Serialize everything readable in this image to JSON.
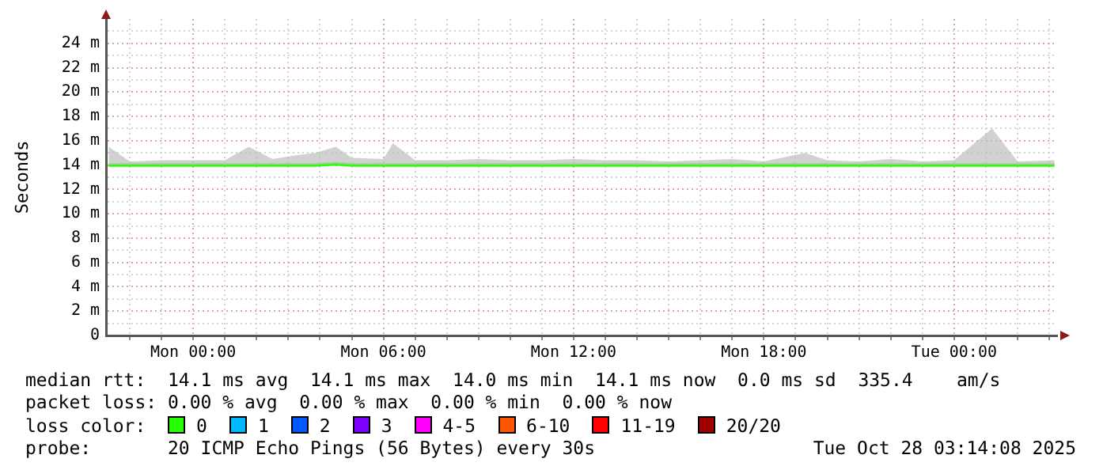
{
  "chart_data": {
    "type": "line",
    "ylabel": "Seconds",
    "xlim": [
      "2025-10-26T21:15",
      "2025-10-28T03:15"
    ],
    "xticks": [
      {
        "value": "2025-10-26T22:00",
        "label": null
      },
      {
        "value": "2025-10-26T23:00",
        "label": null
      },
      {
        "value": "2025-10-27T00:00",
        "label": "Mon 00:00"
      },
      {
        "value": "2025-10-27T01:00",
        "label": null
      },
      {
        "value": "2025-10-27T02:00",
        "label": null
      },
      {
        "value": "2025-10-27T03:00",
        "label": null
      },
      {
        "value": "2025-10-27T04:00",
        "label": null
      },
      {
        "value": "2025-10-27T05:00",
        "label": null
      },
      {
        "value": "2025-10-27T06:00",
        "label": "Mon 06:00"
      },
      {
        "value": "2025-10-27T07:00",
        "label": null
      },
      {
        "value": "2025-10-27T08:00",
        "label": null
      },
      {
        "value": "2025-10-27T09:00",
        "label": null
      },
      {
        "value": "2025-10-27T10:00",
        "label": null
      },
      {
        "value": "2025-10-27T11:00",
        "label": null
      },
      {
        "value": "2025-10-27T12:00",
        "label": "Mon 12:00"
      },
      {
        "value": "2025-10-27T13:00",
        "label": null
      },
      {
        "value": "2025-10-27T14:00",
        "label": null
      },
      {
        "value": "2025-10-27T15:00",
        "label": null
      },
      {
        "value": "2025-10-27T16:00",
        "label": null
      },
      {
        "value": "2025-10-27T17:00",
        "label": null
      },
      {
        "value": "2025-10-27T18:00",
        "label": "Mon 18:00"
      },
      {
        "value": "2025-10-27T19:00",
        "label": null
      },
      {
        "value": "2025-10-27T20:00",
        "label": null
      },
      {
        "value": "2025-10-27T21:00",
        "label": null
      },
      {
        "value": "2025-10-27T22:00",
        "label": null
      },
      {
        "value": "2025-10-27T23:00",
        "label": null
      },
      {
        "value": "2025-10-28T00:00",
        "label": "Tue 00:00"
      },
      {
        "value": "2025-10-28T01:00",
        "label": null
      },
      {
        "value": "2025-10-28T02:00",
        "label": null
      },
      {
        "value": "2025-10-28T03:00",
        "label": null
      }
    ],
    "ylim": [
      0,
      26
    ],
    "yticks": [
      {
        "value": 0,
        "label": "0"
      },
      {
        "value": 1,
        "label": null
      },
      {
        "value": 2,
        "label": "2 m"
      },
      {
        "value": 3,
        "label": null
      },
      {
        "value": 4,
        "label": "4 m"
      },
      {
        "value": 5,
        "label": null
      },
      {
        "value": 6,
        "label": "6 m"
      },
      {
        "value": 7,
        "label": null
      },
      {
        "value": 8,
        "label": "8 m"
      },
      {
        "value": 9,
        "label": null
      },
      {
        "value": 10,
        "label": "10 m"
      },
      {
        "value": 11,
        "label": null
      },
      {
        "value": 12,
        "label": "12 m"
      },
      {
        "value": 13,
        "label": null
      },
      {
        "value": 14,
        "label": "14 m"
      },
      {
        "value": 15,
        "label": null
      },
      {
        "value": 16,
        "label": "16 m"
      },
      {
        "value": 17,
        "label": null
      },
      {
        "value": 18,
        "label": "18 m"
      },
      {
        "value": 19,
        "label": null
      },
      {
        "value": 20,
        "label": "20 m"
      },
      {
        "value": 21,
        "label": null
      },
      {
        "value": 22,
        "label": "22 m"
      },
      {
        "value": 23,
        "label": null
      },
      {
        "value": 24,
        "label": "24 m"
      },
      {
        "value": 25,
        "label": null
      }
    ],
    "grid": true,
    "marker": "none",
    "line_style": "solid",
    "legend": "bottom",
    "legend_title": "loss color:",
    "series": [
      {
        "name": "0",
        "color": "#26ff00",
        "x": [
          "2025-10-26T21:20",
          "2025-10-26T22:00",
          "2025-10-26T23:00",
          "2025-10-27T00:00",
          "2025-10-27T01:00",
          "2025-10-27T01:45",
          "2025-10-27T02:30",
          "2025-10-27T03:15",
          "2025-10-27T03:51",
          "2025-10-27T04:30",
          "2025-10-27T05:00",
          "2025-10-27T06:00",
          "2025-10-27T06:18",
          "2025-10-27T07:00",
          "2025-10-27T08:00",
          "2025-10-27T09:00",
          "2025-10-27T10:00",
          "2025-10-27T11:00",
          "2025-10-27T12:00",
          "2025-10-27T13:00",
          "2025-10-27T14:00",
          "2025-10-27T15:00",
          "2025-10-27T16:00",
          "2025-10-27T17:00",
          "2025-10-27T18:00",
          "2025-10-27T19:18",
          "2025-10-27T20:00",
          "2025-10-27T21:00",
          "2025-10-27T22:00",
          "2025-10-27T23:00",
          "2025-10-28T00:00",
          "2025-10-28T01:12",
          "2025-10-28T02:00",
          "2025-10-28T03:10"
        ],
        "values": [
          14.0,
          14.0,
          14.0,
          14.0,
          14.0,
          14.0,
          14.0,
          14.0,
          14.0,
          14.1,
          14.0,
          14.0,
          14.0,
          14.0,
          14.0,
          14.0,
          14.0,
          14.0,
          14.0,
          14.0,
          14.0,
          14.0,
          14.0,
          14.0,
          14.0,
          14.0,
          14.0,
          14.0,
          14.0,
          14.0,
          14.0,
          14.0,
          14.0,
          14.0
        ],
        "lower": [
          14.0,
          14.0,
          14.0,
          14.0,
          14.0,
          14.0,
          14.0,
          14.0,
          14.0,
          14.1,
          14.0,
          14.0,
          14.0,
          14.0,
          14.0,
          14.0,
          14.0,
          14.0,
          14.0,
          14.0,
          14.0,
          14.0,
          14.0,
          14.0,
          14.0,
          14.0,
          14.0,
          14.0,
          14.0,
          14.0,
          14.0,
          14.0,
          14.0,
          14.0
        ],
        "upper": [
          15.5,
          14.3,
          14.4,
          14.4,
          14.4,
          15.5,
          14.5,
          14.8,
          15.0,
          15.5,
          14.6,
          14.5,
          15.8,
          14.4,
          14.4,
          14.5,
          14.4,
          14.4,
          14.5,
          14.4,
          14.4,
          14.3,
          14.4,
          14.5,
          14.3,
          15.0,
          14.4,
          14.3,
          14.5,
          14.3,
          14.4,
          17.0,
          14.3,
          14.4
        ]
      },
      {
        "name": "1",
        "color": "#00b8ff"
      },
      {
        "name": "2",
        "color": "#0059ff"
      },
      {
        "name": "3",
        "color": "#7e00ff"
      },
      {
        "name": "4-5",
        "color": "#ff00ff"
      },
      {
        "name": "6-10",
        "color": "#ff5500"
      },
      {
        "name": "11-19",
        "color": "#ff0000"
      },
      {
        "name": "20/20",
        "color": "#a10000"
      }
    ],
    "annotations": [
      "median rtt:  14.1 ms avg  14.1 ms max  14.0 ms min  14.1 ms now  0.0 ms sd  335.4    am/s",
      "packet loss: 0.00 % avg  0.00 % max  0.00 % min  0.00 % now",
      "probe:       20 ICMP Echo Pings (56 Bytes) every 30s",
      "Tue Oct 28 03:14:08 2025"
    ]
  }
}
